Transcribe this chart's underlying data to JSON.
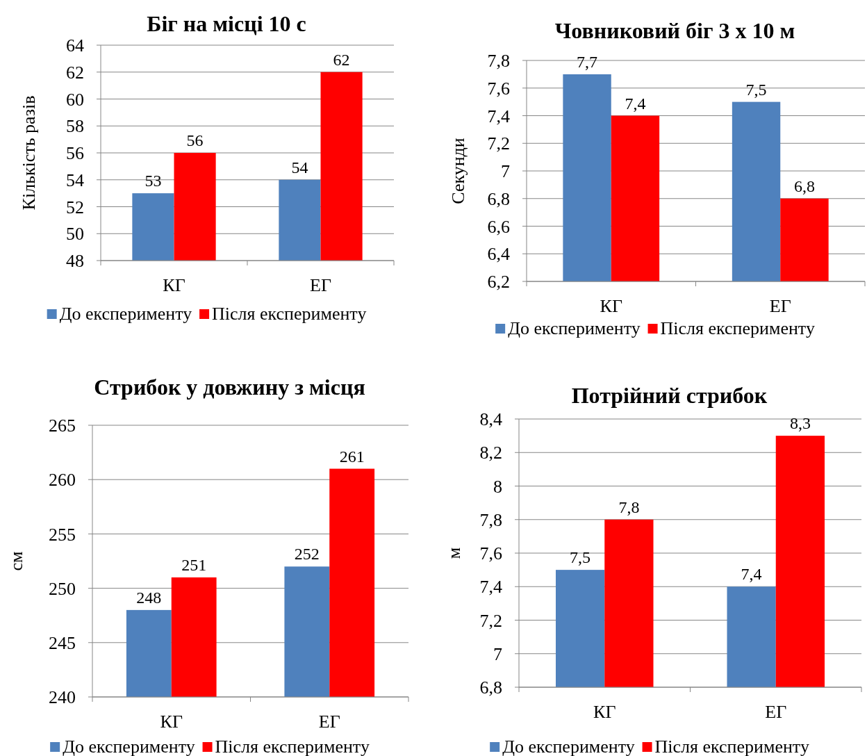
{
  "chart_data": [
    {
      "type": "bar",
      "title": "Біг на місці 10 с",
      "ylabel": "Кількість разів",
      "categories": [
        "КГ",
        "ЕГ"
      ],
      "series": [
        {
          "name": "До експерименту",
          "color": "#4f81bd",
          "values": [
            53,
            54
          ],
          "value_labels": [
            "53",
            "54"
          ]
        },
        {
          "name": "Після експерименту",
          "color": "#ff0000",
          "values": [
            56,
            62
          ],
          "value_labels": [
            "56",
            "62"
          ]
        }
      ],
      "ylim": [
        48,
        64
      ],
      "yticks": [
        48,
        50,
        52,
        54,
        56,
        58,
        60,
        62,
        64
      ],
      "grid": "y",
      "legend": "bottom"
    },
    {
      "type": "bar",
      "title": "Човниковий біг 3 х 10 м",
      "ylabel": "Секунди",
      "categories": [
        "КГ",
        "ЕГ"
      ],
      "series": [
        {
          "name": "До експерименту",
          "color": "#4f81bd",
          "values": [
            7.7,
            7.5
          ],
          "value_labels": [
            "7,7",
            "7,5"
          ]
        },
        {
          "name": "Після експерименту",
          "color": "#ff0000",
          "values": [
            7.4,
            6.8
          ],
          "value_labels": [
            "7,4",
            "6,8"
          ]
        }
      ],
      "ylim": [
        6.2,
        7.8
      ],
      "yticks": [
        {
          "value": 6.2,
          "label": "6,2"
        },
        {
          "value": 6.4,
          "label": "6,4"
        },
        {
          "value": 6.6,
          "label": "6,6"
        },
        {
          "value": 6.8,
          "label": "6,8"
        },
        7,
        {
          "value": 7.2,
          "label": "7,2"
        },
        {
          "value": 7.4,
          "label": "7,4"
        },
        {
          "value": 7.6,
          "label": "7,6"
        },
        {
          "value": 7.8,
          "label": "7,8"
        }
      ],
      "grid": "y",
      "legend": "bottom"
    },
    {
      "type": "bar",
      "title": "Стрибок у довжину з місця",
      "ylabel": "см",
      "categories": [
        "КГ",
        "ЕГ"
      ],
      "series": [
        {
          "name": "До експерименту",
          "color": "#4f81bd",
          "values": [
            248,
            252
          ],
          "value_labels": [
            "248",
            "252"
          ]
        },
        {
          "name": "Після експерименту",
          "color": "#ff0000",
          "values": [
            251,
            261
          ],
          "value_labels": [
            "251",
            "261"
          ]
        }
      ],
      "ylim": [
        240,
        265
      ],
      "yticks": [
        240,
        245,
        250,
        255,
        260,
        265
      ],
      "grid": "y",
      "legend": "bottom"
    },
    {
      "type": "bar",
      "title": "Потрійний стрибок",
      "ylabel": "м",
      "categories": [
        "КГ",
        "ЕГ"
      ],
      "series": [
        {
          "name": "До експерименту",
          "color": "#4f81bd",
          "values": [
            7.5,
            7.4
          ],
          "value_labels": [
            "7,5",
            "7,4"
          ]
        },
        {
          "name": "Після експерименту",
          "color": "#ff0000",
          "values": [
            7.8,
            8.3
          ],
          "value_labels": [
            "7,8",
            "8,3"
          ]
        }
      ],
      "ylim": [
        6.8,
        8.4
      ],
      "yticks": [
        {
          "value": 6.8,
          "label": "6,8"
        },
        7,
        {
          "value": 7.2,
          "label": "7,2"
        },
        {
          "value": 7.4,
          "label": "7,4"
        },
        {
          "value": 7.6,
          "label": "7,6"
        },
        {
          "value": 7.8,
          "label": "7,8"
        },
        8,
        {
          "value": 8.2,
          "label": "8,2"
        },
        {
          "value": 8.4,
          "label": "8,4"
        }
      ],
      "grid": "y",
      "legend": "bottom"
    }
  ]
}
